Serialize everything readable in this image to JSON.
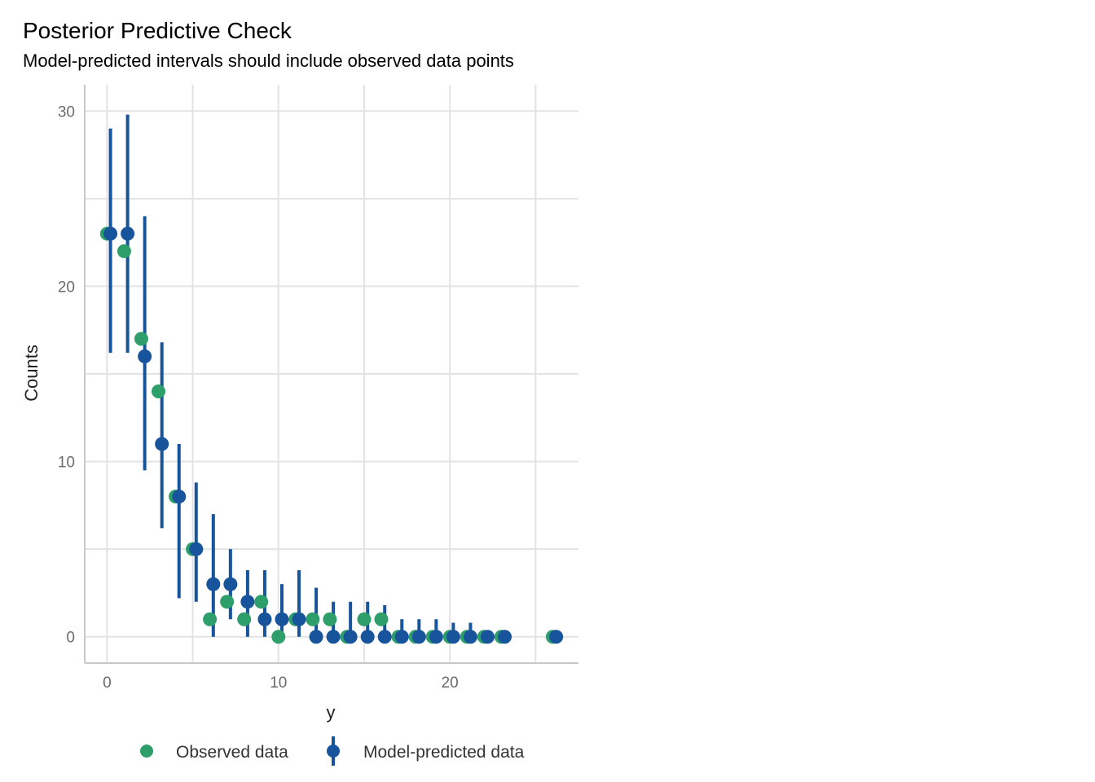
{
  "chart_data": {
    "type": "scatter",
    "title": "Posterior Predictive Check",
    "subtitle": "Model-predicted intervals should include observed data points",
    "xlabel": "y",
    "ylabel": "Counts",
    "xlim": [
      -1.3,
      27.5
    ],
    "ylim": [
      -1.5,
      31.5
    ],
    "x_ticks": [
      0,
      10,
      20
    ],
    "y_ticks": [
      0,
      10,
      20,
      30
    ],
    "grid": true,
    "legend_position": "bottom",
    "colors": {
      "observed": "#2e9e6b",
      "predicted": "#17549b"
    },
    "series": [
      {
        "name": "Observed data",
        "style": "point",
        "x": [
          0,
          1,
          2,
          3,
          4,
          5,
          6,
          7,
          8,
          9,
          10,
          11,
          12,
          13,
          14,
          15,
          16,
          17,
          18,
          19,
          20,
          21,
          22,
          23,
          26
        ],
        "y": [
          23,
          22,
          17,
          14,
          8,
          5,
          1,
          2,
          1,
          2,
          0,
          1,
          1,
          1,
          0,
          1,
          1,
          0,
          0,
          0,
          0,
          0,
          0,
          0,
          0
        ]
      },
      {
        "name": "Model-predicted data",
        "style": "pointrange",
        "x": [
          0,
          1,
          2,
          3,
          4,
          5,
          6,
          7,
          8,
          9,
          10,
          11,
          12,
          13,
          14,
          15,
          16,
          17,
          18,
          19,
          20,
          21,
          22,
          23,
          26
        ],
        "y": [
          23,
          23,
          16,
          11,
          8,
          5,
          3,
          3,
          2,
          1,
          1,
          1,
          0,
          0,
          0,
          0,
          0,
          0,
          0,
          0,
          0,
          0,
          0,
          0,
          0
        ],
        "lower": [
          16.2,
          16.2,
          9.5,
          6.2,
          2.2,
          2.0,
          0,
          1.0,
          0,
          0,
          0,
          0,
          0,
          0,
          0,
          0,
          0,
          0,
          0,
          0,
          0,
          0,
          0,
          0,
          0
        ],
        "upper": [
          29,
          29.8,
          24,
          16.8,
          11,
          8.8,
          7,
          5,
          3.8,
          3.8,
          3,
          3.8,
          2.8,
          2,
          2,
          2,
          1.8,
          1,
          1,
          1,
          0.8,
          0.8,
          0,
          0,
          0
        ]
      }
    ]
  }
}
